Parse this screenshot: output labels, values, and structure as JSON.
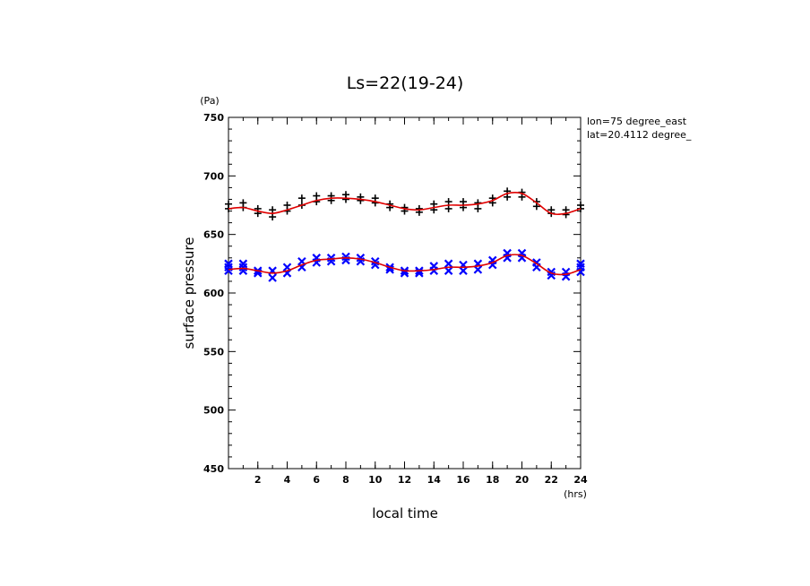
{
  "chart_data": {
    "type": "scatter",
    "title": "Ls=22(19-24)",
    "ylabel": "surface pressure",
    "yunit": "(Pa)",
    "xlabel": "local time",
    "xunit": "(hrs)",
    "annotation_lines": [
      "lon=75 degree_east",
      "lat=20.4112 degree_"
    ],
    "xlim": [
      0,
      24
    ],
    "ylim": [
      450,
      750
    ],
    "xticks": [
      2,
      4,
      6,
      8,
      10,
      12,
      14,
      16,
      18,
      20,
      22,
      24
    ],
    "yticks": [
      450,
      500,
      550,
      600,
      650,
      700,
      750
    ],
    "fit_color": "#e00000",
    "series": [
      {
        "marker": "plus",
        "color": "#000000",
        "points": [
          [
            0,
            672
          ],
          [
            0,
            676
          ],
          [
            1,
            673
          ],
          [
            1,
            677
          ],
          [
            2,
            668
          ],
          [
            2,
            672
          ],
          [
            3,
            665
          ],
          [
            3,
            671
          ],
          [
            4,
            670
          ],
          [
            4,
            675
          ],
          [
            5,
            675
          ],
          [
            5,
            681
          ],
          [
            6,
            678
          ],
          [
            6,
            683
          ],
          [
            7,
            679
          ],
          [
            7,
            683
          ],
          [
            8,
            680
          ],
          [
            8,
            684
          ],
          [
            9,
            679
          ],
          [
            9,
            682
          ],
          [
            10,
            677
          ],
          [
            10,
            681
          ],
          [
            11,
            673
          ],
          [
            11,
            676
          ],
          [
            12,
            670
          ],
          [
            12,
            673
          ],
          [
            13,
            669
          ],
          [
            13,
            672
          ],
          [
            14,
            671
          ],
          [
            14,
            676
          ],
          [
            15,
            672
          ],
          [
            15,
            678
          ],
          [
            16,
            673
          ],
          [
            16,
            678
          ],
          [
            17,
            672
          ],
          [
            17,
            677
          ],
          [
            18,
            677
          ],
          [
            18,
            681
          ],
          [
            19,
            682
          ],
          [
            19,
            687
          ],
          [
            20,
            682
          ],
          [
            20,
            686
          ],
          [
            21,
            674
          ],
          [
            21,
            678
          ],
          [
            22,
            668
          ],
          [
            22,
            671
          ],
          [
            23,
            667
          ],
          [
            23,
            671
          ],
          [
            24,
            672
          ],
          [
            24,
            675
          ]
        ],
        "fit": [
          [
            0,
            672
          ],
          [
            1,
            673
          ],
          [
            2,
            670
          ],
          [
            3,
            668
          ],
          [
            4,
            671
          ],
          [
            5,
            675
          ],
          [
            6,
            679
          ],
          [
            7,
            681
          ],
          [
            8,
            681
          ],
          [
            9,
            680
          ],
          [
            10,
            678
          ],
          [
            11,
            675
          ],
          [
            12,
            672
          ],
          [
            13,
            671
          ],
          [
            14,
            673
          ],
          [
            15,
            675
          ],
          [
            16,
            675
          ],
          [
            17,
            676
          ],
          [
            18,
            679
          ],
          [
            19,
            685
          ],
          [
            20,
            685
          ],
          [
            21,
            677
          ],
          [
            22,
            668
          ],
          [
            23,
            668
          ],
          [
            24,
            672
          ]
        ]
      },
      {
        "marker": "x",
        "color": "#0000ff",
        "points": [
          [
            0,
            619
          ],
          [
            0,
            622
          ],
          [
            0,
            625
          ],
          [
            1,
            619
          ],
          [
            1,
            622
          ],
          [
            1,
            625
          ],
          [
            2,
            617
          ],
          [
            2,
            619
          ],
          [
            3,
            613
          ],
          [
            3,
            619
          ],
          [
            4,
            617
          ],
          [
            4,
            622
          ],
          [
            5,
            622
          ],
          [
            5,
            627
          ],
          [
            6,
            626
          ],
          [
            6,
            630
          ],
          [
            7,
            627
          ],
          [
            7,
            630
          ],
          [
            8,
            628
          ],
          [
            8,
            631
          ],
          [
            9,
            627
          ],
          [
            9,
            630
          ],
          [
            10,
            624
          ],
          [
            10,
            627
          ],
          [
            11,
            620
          ],
          [
            11,
            622
          ],
          [
            12,
            617
          ],
          [
            12,
            619
          ],
          [
            13,
            617
          ],
          [
            13,
            619
          ],
          [
            14,
            619
          ],
          [
            14,
            623
          ],
          [
            15,
            619
          ],
          [
            15,
            625
          ],
          [
            16,
            619
          ],
          [
            16,
            624
          ],
          [
            17,
            620
          ],
          [
            17,
            625
          ],
          [
            18,
            624
          ],
          [
            18,
            628
          ],
          [
            19,
            630
          ],
          [
            19,
            634
          ],
          [
            20,
            630
          ],
          [
            20,
            634
          ],
          [
            21,
            622
          ],
          [
            21,
            626
          ],
          [
            22,
            615
          ],
          [
            22,
            618
          ],
          [
            23,
            614
          ],
          [
            23,
            618
          ],
          [
            24,
            618
          ],
          [
            24,
            622
          ],
          [
            24,
            625
          ]
        ],
        "fit": [
          [
            0,
            620
          ],
          [
            1,
            621
          ],
          [
            2,
            619
          ],
          [
            3,
            617
          ],
          [
            4,
            619
          ],
          [
            5,
            624
          ],
          [
            6,
            628
          ],
          [
            7,
            629
          ],
          [
            8,
            630
          ],
          [
            9,
            629
          ],
          [
            10,
            626
          ],
          [
            11,
            622
          ],
          [
            12,
            619
          ],
          [
            13,
            619
          ],
          [
            14,
            620
          ],
          [
            15,
            622
          ],
          [
            16,
            622
          ],
          [
            17,
            623
          ],
          [
            18,
            626
          ],
          [
            19,
            632
          ],
          [
            20,
            632
          ],
          [
            21,
            625
          ],
          [
            22,
            617
          ],
          [
            23,
            616
          ],
          [
            24,
            620
          ]
        ]
      }
    ]
  }
}
